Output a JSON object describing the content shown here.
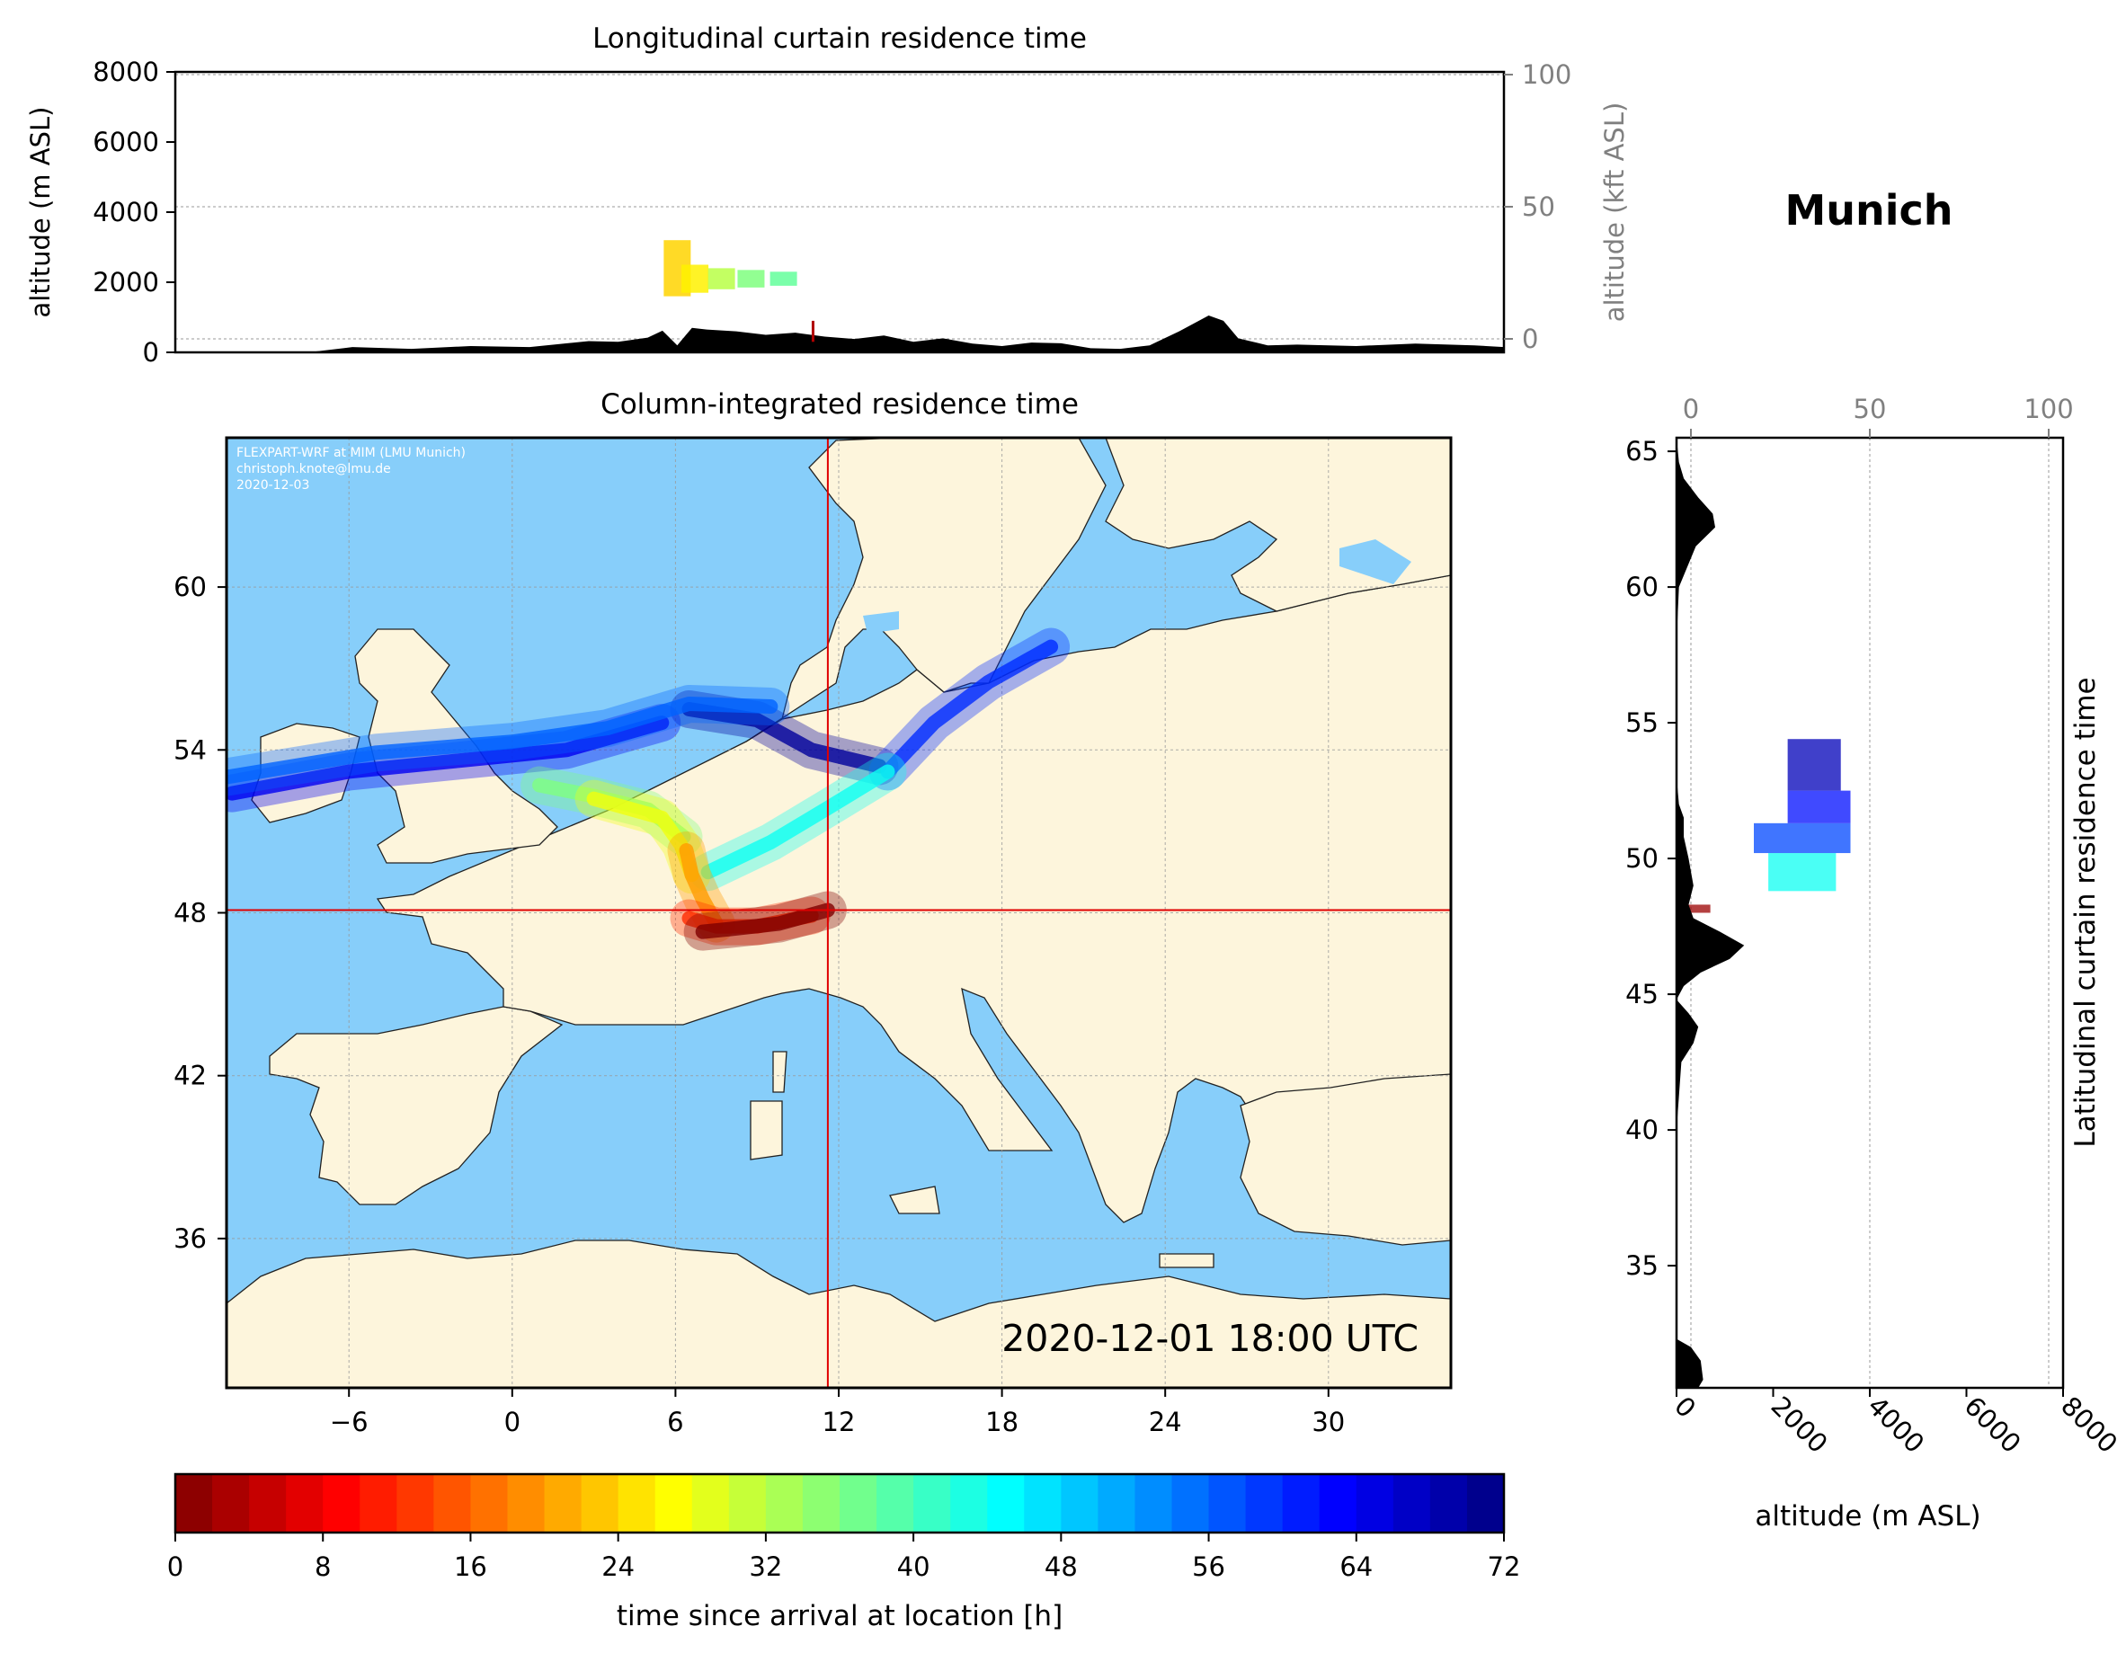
{
  "figure": {
    "site_title": "Munich",
    "timestamp": "2020-12-01 18:00 UTC",
    "credit_lines": [
      "FLEXPART-WRF at MIM (LMU Munich)",
      "christoph.knote@lmu.de",
      "2020-12-03"
    ]
  },
  "colors": {
    "ocean": "#87cefa",
    "land": "#fdf5dc",
    "terrain": "#000000",
    "crosshair": "#e00000",
    "grid": "#999999"
  },
  "chart_data": [
    {
      "id": "longitudinal",
      "type": "area",
      "title": "Longitudinal curtain residence time",
      "ylabel": "altitude (m ASL)",
      "ylabel_right": "altitude (kft ASL)",
      "ylim": [
        0,
        8000
      ],
      "yticks": [
        "0",
        "2000",
        "4000",
        "6000",
        "8000"
      ],
      "ylim_right": [
        0,
        100
      ],
      "yticks_right": [
        "0",
        "50",
        "100"
      ],
      "xlim": [
        -10,
        35
      ],
      "terrain_profile": {
        "x": [
          -10,
          -5.5,
          -4,
          -2,
          0,
          2,
          4,
          5,
          6,
          6.5,
          7,
          7.5,
          8,
          9,
          10,
          11,
          12,
          13,
          14,
          15,
          16,
          17,
          18,
          19,
          20,
          21,
          22,
          23,
          24,
          25,
          25.5,
          26,
          27,
          28,
          30,
          32,
          34,
          35
        ],
        "altitude_m": [
          0,
          0,
          150,
          100,
          180,
          150,
          320,
          300,
          420,
          620,
          200,
          700,
          650,
          600,
          500,
          560,
          450,
          380,
          480,
          300,
          400,
          250,
          180,
          280,
          260,
          120,
          100,
          200,
          600,
          1050,
          900,
          400,
          200,
          220,
          180,
          250,
          200,
          150
        ]
      },
      "residence": [
        {
          "lon": 7.0,
          "alt_min": 1600,
          "alt_max": 3200,
          "time_h": 24
        },
        {
          "lon": 7.6,
          "alt_min": 1700,
          "alt_max": 2500,
          "time_h": 26
        },
        {
          "lon": 8.5,
          "alt_min": 1800,
          "alt_max": 2400,
          "time_h": 32
        },
        {
          "lon": 9.5,
          "alt_min": 1850,
          "alt_max": 2350,
          "time_h": 36
        },
        {
          "lon": 10.6,
          "alt_min": 1900,
          "alt_max": 2300,
          "time_h": 38
        }
      ],
      "location_marker_lon": 11.6
    },
    {
      "id": "column",
      "type": "heatmap",
      "title": "Column-integrated residence time",
      "xlim": [
        -10.5,
        34.5
      ],
      "ylim": [
        30.5,
        65.5
      ],
      "xticks": [
        "−6",
        "0",
        "6",
        "12",
        "18",
        "24",
        "30"
      ],
      "xtick_values": [
        -6,
        0,
        6,
        12,
        18,
        24,
        30
      ],
      "yticks": [
        "36",
        "42",
        "48",
        "54",
        "60"
      ],
      "ytick_values": [
        36,
        42,
        48,
        54,
        60
      ],
      "crosshair": {
        "lon": 11.6,
        "lat": 48.1
      },
      "trajectories": [
        {
          "time_h": 0,
          "points": [
            [
              11.6,
              48.1
            ],
            [
              9.8,
              47.6
            ],
            [
              8.0,
              47.4
            ],
            [
              7.0,
              47.3
            ]
          ]
        },
        {
          "time_h": 12,
          "points": [
            [
              11.0,
              47.9
            ],
            [
              9.0,
              47.5
            ],
            [
              7.5,
              47.5
            ],
            [
              6.5,
              47.8
            ]
          ]
        },
        {
          "time_h": 20,
          "points": [
            [
              7.5,
              47.6
            ],
            [
              7.0,
              48.5
            ],
            [
              6.6,
              49.4
            ],
            [
              6.4,
              50.3
            ]
          ]
        },
        {
          "time_h": 28,
          "points": [
            [
              6.6,
              49.4
            ],
            [
              6.2,
              50.5
            ],
            [
              5.5,
              51.5
            ],
            [
              3.0,
              52.2
            ]
          ]
        },
        {
          "time_h": 36,
          "points": [
            [
              6.3,
              50.8
            ],
            [
              5.0,
              51.8
            ],
            [
              3.0,
              52.3
            ],
            [
              1.0,
              52.7
            ]
          ]
        },
        {
          "time_h": 44,
          "points": [
            [
              7.2,
              49.5
            ],
            [
              9.5,
              50.6
            ],
            [
              11.5,
              51.8
            ],
            [
              13.8,
              53.2
            ]
          ]
        },
        {
          "time_h": 56,
          "points": [
            [
              -10.5,
              53.0
            ],
            [
              -5.0,
              53.9
            ],
            [
              0.0,
              54.3
            ],
            [
              3.5,
              54.8
            ],
            [
              6.5,
              55.7
            ],
            [
              9.5,
              55.6
            ]
          ]
        },
        {
          "time_h": 60,
          "points": [
            [
              13.8,
              53.2
            ],
            [
              15.5,
              55.0
            ],
            [
              17.5,
              56.5
            ],
            [
              19.8,
              57.8
            ]
          ]
        },
        {
          "time_h": 64,
          "points": [
            [
              -10.3,
              52.4
            ],
            [
              -6.0,
              53.2
            ],
            [
              -2.0,
              53.6
            ],
            [
              2.0,
              54.0
            ],
            [
              5.5,
              55.0
            ]
          ]
        },
        {
          "time_h": 70,
          "points": [
            [
              6.5,
              55.5
            ],
            [
              9.0,
              55.1
            ],
            [
              11.0,
              54.0
            ],
            [
              13.5,
              53.4
            ]
          ]
        }
      ]
    },
    {
      "id": "latitudinal",
      "type": "area",
      "title": "Latitudinal curtain residence time",
      "xlabel": "altitude (m ASL)",
      "xlim": [
        0,
        8000
      ],
      "xticks": [
        "0",
        "2000",
        "4000",
        "6000",
        "8000"
      ],
      "xlim_top": [
        0,
        100
      ],
      "xticks_top": [
        "0",
        "50",
        "100"
      ],
      "ylim": [
        30.5,
        65.5
      ],
      "yticks": [
        "35",
        "40",
        "45",
        "50",
        "55",
        "60",
        "65"
      ],
      "ytick_values": [
        35,
        40,
        45,
        50,
        55,
        60,
        65
      ],
      "terrain_profile": {
        "lat": [
          30.5,
          30.8,
          31.5,
          32.0,
          32.3,
          33,
          36,
          40,
          42.5,
          43.2,
          43.8,
          44.3,
          44.8,
          45.3,
          45.8,
          46.3,
          46.8,
          47.3,
          47.8,
          48.3,
          49.0,
          50.0,
          50.8,
          51.5,
          52.0,
          53.0,
          57.0,
          58.0,
          60.0,
          61.5,
          62.2,
          62.7,
          63.3,
          64.0,
          64.6,
          65.5
        ],
        "altitude_m": [
          450,
          550,
          500,
          300,
          0,
          0,
          0,
          0,
          100,
          350,
          450,
          250,
          0,
          150,
          500,
          1100,
          1400,
          900,
          350,
          250,
          350,
          250,
          150,
          150,
          50,
          0,
          0,
          0,
          50,
          400,
          800,
          750,
          450,
          150,
          50,
          0
        ]
      },
      "residence": [
        {
          "lat_min": 48.0,
          "lat_max": 48.3,
          "alt_min": 200,
          "alt_max": 700,
          "time_h": 2
        },
        {
          "lat_min": 48.8,
          "lat_max": 50.2,
          "alt_min": 1900,
          "alt_max": 3300,
          "time_h": 44
        },
        {
          "lat_min": 50.2,
          "lat_max": 51.3,
          "alt_min": 1600,
          "alt_max": 3600,
          "time_h": 58
        },
        {
          "lat_min": 51.3,
          "lat_max": 52.5,
          "alt_min": 2300,
          "alt_max": 3600,
          "time_h": 62
        },
        {
          "lat_min": 52.5,
          "lat_max": 54.4,
          "alt_min": 2300,
          "alt_max": 3400,
          "time_h": 68
        }
      ]
    },
    {
      "id": "colorbar",
      "type": "heatmap",
      "label": "time since arrival at location [h]",
      "range": [
        0,
        72
      ],
      "ticks": [
        "0",
        "8",
        "16",
        "24",
        "32",
        "40",
        "48",
        "56",
        "64",
        "72"
      ],
      "tick_values": [
        0,
        8,
        16,
        24,
        32,
        40,
        48,
        56,
        64,
        72
      ],
      "colormap": [
        "#7f0000",
        "#ff0000",
        "#ff7f00",
        "#ffff00",
        "#7fff7f",
        "#00ffff",
        "#007fff",
        "#0000ff",
        "#00007f"
      ]
    }
  ]
}
